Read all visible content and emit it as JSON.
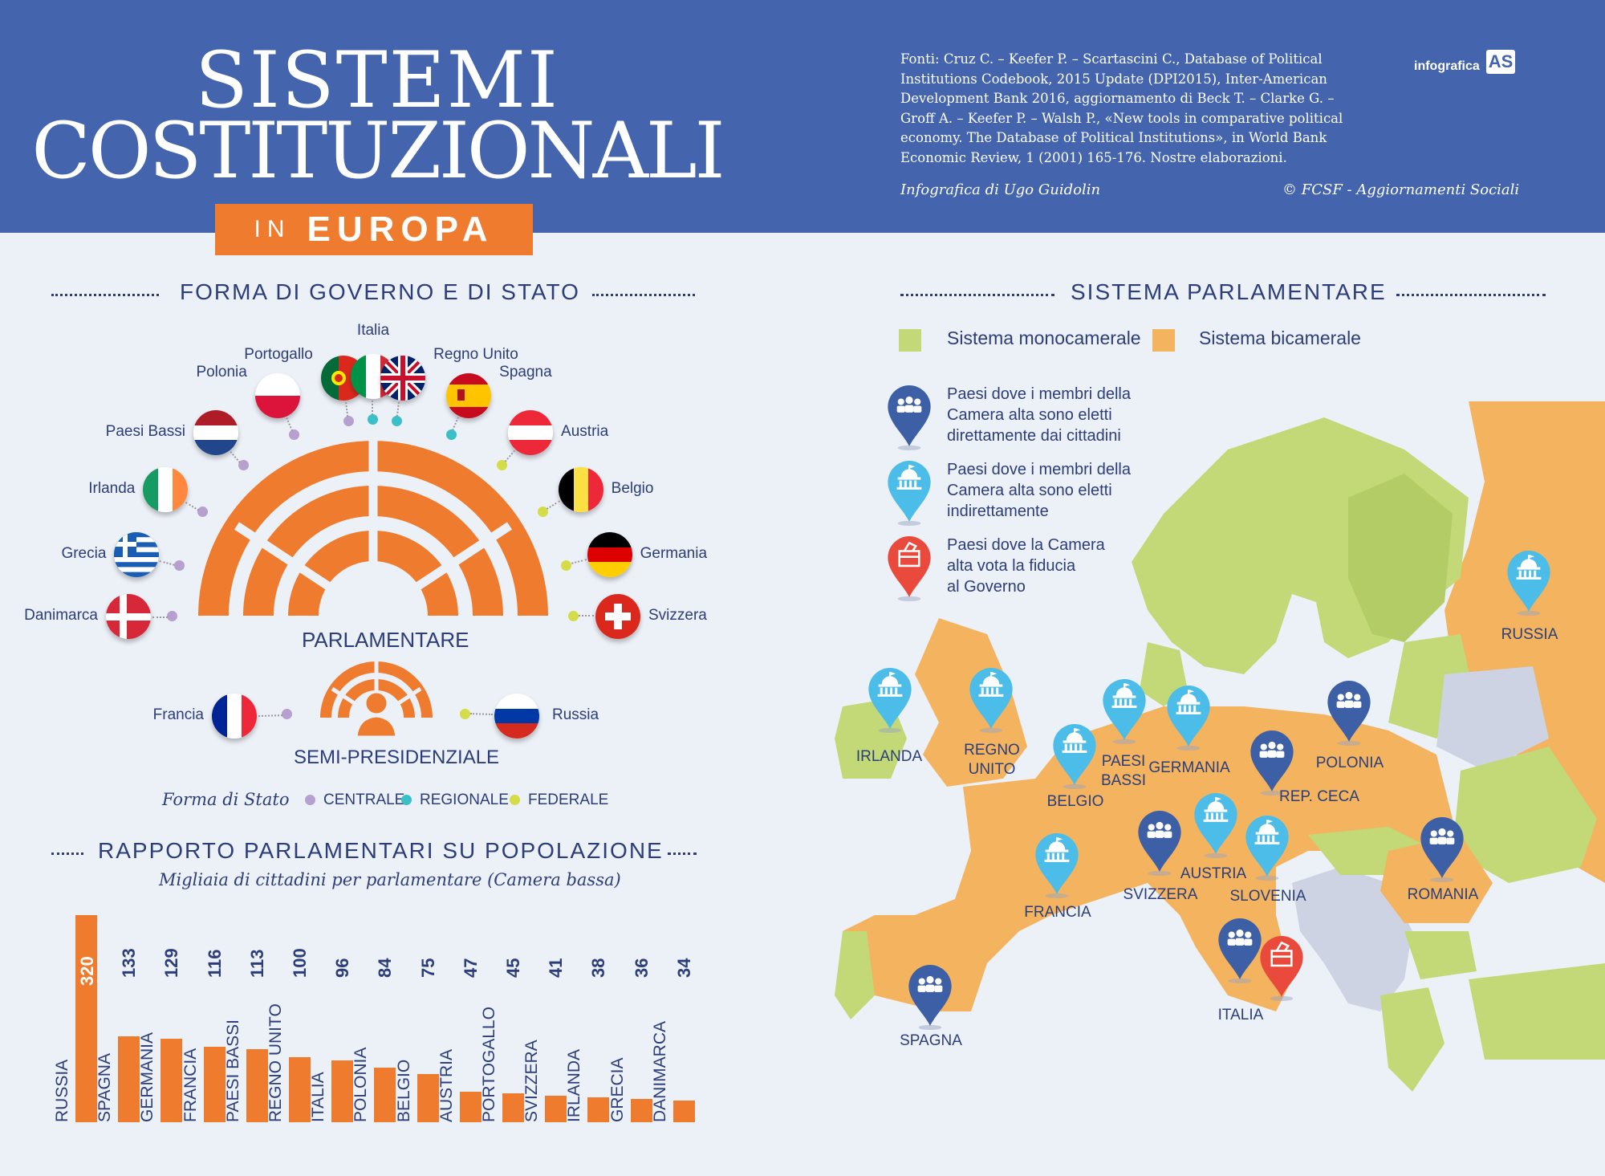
{
  "header": {
    "title_line1": "SISTEMI",
    "title_line2": "COSTITUZIONALI",
    "subtitle_in": "IN",
    "subtitle_region": "EUROPA",
    "sources_lines": [
      "Fonti:  Cruz C. – Keefer P. – Scartascini C., Database of Political",
      "Institutions Codebook, 2015 Update (DPI2015), Inter-American",
      "Development Bank 2016, aggiornamento di Beck T. – Clarke G. –",
      "Groff A. – Keefer P. – Walsh P., «New tools in comparative political",
      "economy. The Database of Political Institutions», in World Bank",
      "Economic Review, 1 (2001) 165-176. Nostre elaborazioni."
    ],
    "credit": "Infografica di Ugo Guidolin",
    "copyright": "© FCSF - Aggiornamenti Sociali",
    "logo_text": "infografica",
    "logo_mark": "AS"
  },
  "forma": {
    "title": "FORMA DI GOVERNO E DI STATO",
    "parlamentare_label": "PARLAMENTARE",
    "semipres_label": "SEMI-PRESIDENZIALE",
    "countries": [
      {
        "name": "Danimarca",
        "flag": "denmark",
        "state": "centrale"
      },
      {
        "name": "Grecia",
        "flag": "greece",
        "state": "centrale"
      },
      {
        "name": "Irlanda",
        "flag": "ireland",
        "state": "centrale"
      },
      {
        "name": "Paesi Bassi",
        "flag": "netherlands",
        "state": "centrale"
      },
      {
        "name": "Polonia",
        "flag": "poland",
        "state": "centrale"
      },
      {
        "name": "Portogallo",
        "flag": "portugal",
        "state": "centrale"
      },
      {
        "name": "Italia",
        "flag": "italy",
        "state": "regionale"
      },
      {
        "name": "Regno Unito",
        "flag": "uk",
        "state": "regionale"
      },
      {
        "name": "Spagna",
        "flag": "spain",
        "state": "regionale"
      },
      {
        "name": "Austria",
        "flag": "austria",
        "state": "federale"
      },
      {
        "name": "Belgio",
        "flag": "belgium",
        "state": "federale"
      },
      {
        "name": "Germania",
        "flag": "germany",
        "state": "federale"
      },
      {
        "name": "Svizzera",
        "flag": "switzerland",
        "state": "federale"
      }
    ],
    "semipres_countries": [
      {
        "name": "Francia",
        "flag": "france",
        "state": "centrale"
      },
      {
        "name": "Russia",
        "flag": "russia",
        "state": "federale"
      }
    ],
    "legend_title": "Forma di Stato",
    "legend": [
      {
        "label": "CENTRALE",
        "color": "#b79fd0"
      },
      {
        "label": "REGIONALE",
        "color": "#3cc0c8"
      },
      {
        "label": "FEDERALE",
        "color": "#d4dc48"
      }
    ]
  },
  "rapporto": {
    "title": "RAPPORTO PARLAMENTARI SU POPOLAZIONE",
    "subtitle": "Migliaia di cittadini per parlamentare (Camera bassa)"
  },
  "chart_data": {
    "type": "bar",
    "title": "RAPPORTO PARLAMENTARI SU POPOLAZIONE",
    "subtitle": "Migliaia di cittadini per parlamentare (Camera bassa)",
    "categories": [
      "RUSSIA",
      "SPAGNA",
      "GERMANIA",
      "FRANCIA",
      "PAESI BASSI",
      "REGNO UNITO",
      "ITALIA",
      "POLONIA",
      "BELGIO",
      "AUSTRIA",
      "PORTOGALLO",
      "SVIZZERA",
      "IRLANDA",
      "GRECIA",
      "DANIMARCA"
    ],
    "values": [
      320,
      133,
      129,
      116,
      113,
      100,
      96,
      84,
      75,
      47,
      45,
      41,
      38,
      36,
      34
    ],
    "ylim": [
      0,
      320
    ],
    "highlight_color": "#ef7c2e"
  },
  "parlamentare": {
    "title": "SISTEMA PARLAMENTARE",
    "legend_mono": "Sistema monocamerale",
    "legend_bi": "Sistema bicamerale",
    "color_mono": "#c3d877",
    "color_bi": "#f3b35f",
    "pin_legend": [
      {
        "text": "Paesi dove i membri della Camera alta sono eletti direttamente dai cittadini",
        "lines": [
          "Paesi dove i membri della",
          "Camera alta sono eletti",
          "direttamente dai cittadini"
        ],
        "color": "#3d5fa6",
        "icon": "people-icon"
      },
      {
        "text": "Paesi dove i membri della Camera alta sono eletti indirettamente",
        "lines": [
          "Paesi dove i membri della",
          "Camera alta sono eletti",
          "indirettamente"
        ],
        "color": "#4bbde8",
        "icon": "parliament-icon"
      },
      {
        "text": "Paesi dove la Camera alta vota la fiducia al Governo",
        "lines": [
          "Paesi dove la Camera",
          "alta vota la fiducia",
          "al Governo"
        ],
        "color": "#ea4a3c",
        "icon": "ballot-box-icon"
      }
    ],
    "map_countries": [
      {
        "name": "RUSSIA",
        "lines": [
          "RUSSIA"
        ],
        "pin": "indirect"
      },
      {
        "name": "IRLANDA",
        "lines": [
          "IRLANDA"
        ],
        "pin": "indirect"
      },
      {
        "name": "REGNO UNITO",
        "lines": [
          "REGNO",
          "UNITO"
        ],
        "pin": "indirect"
      },
      {
        "name": "PAESI BASSI",
        "lines": [
          "PAESI",
          "BASSI"
        ],
        "pin": "indirect"
      },
      {
        "name": "GERMANIA",
        "lines": [
          "GERMANIA"
        ],
        "pin": "indirect"
      },
      {
        "name": "BELGIO",
        "lines": [
          "BELGIO"
        ],
        "pin": "indirect"
      },
      {
        "name": "POLONIA",
        "lines": [
          "POLONIA"
        ],
        "pin": "direct"
      },
      {
        "name": "REP. CECA",
        "lines": [
          "REP. CECA"
        ],
        "pin": "direct"
      },
      {
        "name": "FRANCIA",
        "lines": [
          "FRANCIA"
        ],
        "pin": "indirect"
      },
      {
        "name": "SVIZZERA",
        "lines": [
          "SVIZZERA"
        ],
        "pin": "direct"
      },
      {
        "name": "AUSTRIA",
        "lines": [
          "AUSTRIA"
        ],
        "pin": "indirect"
      },
      {
        "name": "SLOVENIA",
        "lines": [
          "SLOVENIA"
        ],
        "pin": "indirect"
      },
      {
        "name": "ROMANIA",
        "lines": [
          "ROMANIA"
        ],
        "pin": "direct"
      },
      {
        "name": "SPAGNA",
        "lines": [
          "SPAGNA"
        ],
        "pin": "direct"
      },
      {
        "name": "ITALIA",
        "lines": [
          "ITALIA"
        ],
        "pin": "direct+fiducia"
      }
    ]
  }
}
